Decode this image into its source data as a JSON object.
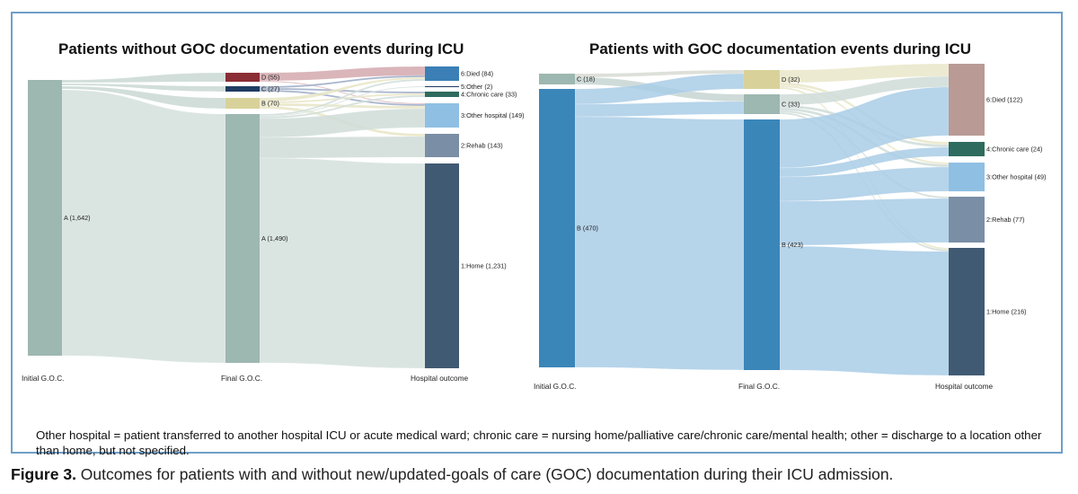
{
  "left_panel": {
    "title": "Patients without GOC documentation events during ICU",
    "stage_labels": [
      "Initial G.O.C.",
      "Final G.O.C.",
      "Hospital outcome"
    ],
    "nodes": [
      {
        "id": "A0",
        "stage": 0,
        "label": "A (1,642)",
        "value": 1642,
        "color": "#9db7b1"
      },
      {
        "id": "D1",
        "stage": 1,
        "label": "D (55)",
        "value": 55,
        "color": "#8b2d35"
      },
      {
        "id": "C1",
        "stage": 1,
        "label": "C (27)",
        "value": 27,
        "color": "#1f3c63"
      },
      {
        "id": "B1",
        "stage": 1,
        "label": "B (70)",
        "value": 70,
        "color": "#d8d29a"
      },
      {
        "id": "A1",
        "stage": 1,
        "label": "A (1,490)",
        "value": 1490,
        "color": "#9db7b1"
      },
      {
        "id": "O6",
        "stage": 2,
        "label": "6:Died (84)",
        "value": 84,
        "color": "#3b7fb6"
      },
      {
        "id": "O5",
        "stage": 2,
        "label": "5:Other (2)",
        "value": 2,
        "color": "#1f3c63"
      },
      {
        "id": "O4",
        "stage": 2,
        "label": "4:Chronic care (33)",
        "value": 33,
        "color": "#2f6b5e"
      },
      {
        "id": "O3",
        "stage": 2,
        "label": "3:Other hospital (149)",
        "value": 149,
        "color": "#8fbfe3"
      },
      {
        "id": "O2",
        "stage": 2,
        "label": "2:Rehab (143)",
        "value": 143,
        "color": "#7a8ea6"
      },
      {
        "id": "O1",
        "stage": 2,
        "label": "1:Home (1,231)",
        "value": 1231,
        "color": "#415a73"
      }
    ]
  },
  "right_panel": {
    "title": "Patients with GOC documentation events during ICU",
    "stage_labels": [
      "Initial G.O.C.",
      "Final G.O.C.",
      "Hospital outcome"
    ],
    "nodes": [
      {
        "id": "C0",
        "stage": 0,
        "label": "C (18)",
        "value": 18,
        "color": "#9db7b1"
      },
      {
        "id": "B0",
        "stage": 0,
        "label": "B (470)",
        "value": 470,
        "color": "#3b86b9"
      },
      {
        "id": "D1",
        "stage": 1,
        "label": "D (32)",
        "value": 32,
        "color": "#d8d29a"
      },
      {
        "id": "C1",
        "stage": 1,
        "label": "C (33)",
        "value": 33,
        "color": "#9db7b1"
      },
      {
        "id": "B1",
        "stage": 1,
        "label": "B (423)",
        "value": 423,
        "color": "#3b86b9"
      },
      {
        "id": "O6",
        "stage": 2,
        "label": "6:Died (122)",
        "value": 122,
        "color": "#b99a95"
      },
      {
        "id": "O4",
        "stage": 2,
        "label": "4:Chronic care (24)",
        "value": 24,
        "color": "#2f6b5e"
      },
      {
        "id": "O3",
        "stage": 2,
        "label": "3:Other hospital (49)",
        "value": 49,
        "color": "#8fbfe3"
      },
      {
        "id": "O2",
        "stage": 2,
        "label": "2:Rehab (77)",
        "value": 77,
        "color": "#7a8ea6"
      },
      {
        "id": "O1",
        "stage": 2,
        "label": "1:Home (216)",
        "value": 216,
        "color": "#415a73"
      }
    ]
  },
  "footnote": "Other hospital = patient transferred to another hospital ICU or acute medical ward; chronic care = nursing home/palliative care/chronic care/mental health; other = discharge to a location other than home, but not specified.",
  "caption": {
    "label": "Figure 3.",
    "text": " Outcomes for patients with and without new/updated-goals of care (GOC) documentation during their ICU admission."
  }
}
